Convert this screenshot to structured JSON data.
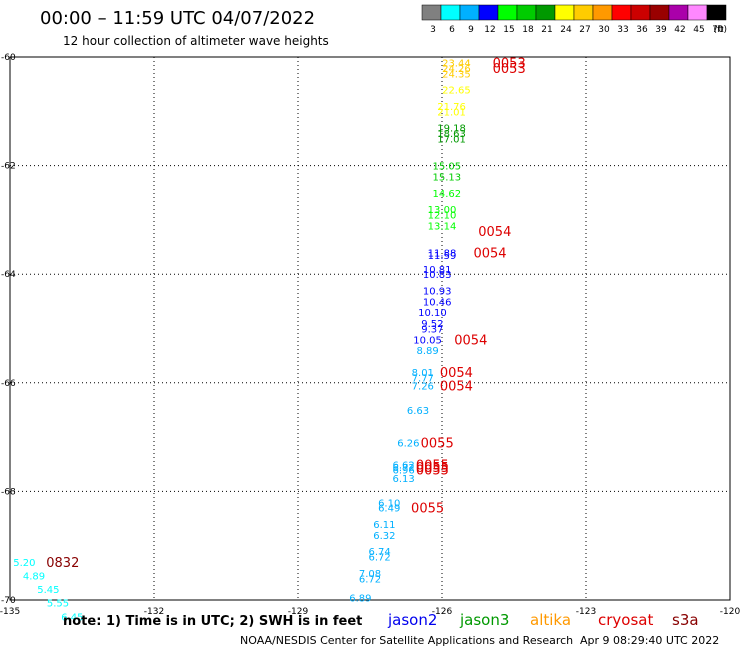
{
  "header": {
    "title": "00:00 – 11:59 UTC 04/07/2022",
    "subtitle": "12 hour collection of altimeter wave heights"
  },
  "colorbar": {
    "labels": [
      "3",
      "6",
      "9",
      "12",
      "15",
      "18",
      "21",
      "24",
      "27",
      "30",
      "33",
      "36",
      "39",
      "42",
      "45",
      "70"
    ],
    "unit": "(ft)",
    "colors": [
      "#808080",
      "#00ffff",
      "#00b0ff",
      "#0000ff",
      "#00ff00",
      "#00cc00",
      "#009900",
      "#ffff00",
      "#ffcc00",
      "#ff9900",
      "#ff0000",
      "#cc0000",
      "#990000",
      "#aa00aa",
      "#ff88ff",
      "#000000"
    ]
  },
  "footer": {
    "note": "note: 1) Time is in UTC; 2) SWH is in feet",
    "credit": "NOAA/NESDIS Center for Satellite Applications and Research",
    "timestamp": "Apr  9 08:29:40 UTC 2022"
  },
  "satellites": [
    {
      "name": "jason2",
      "color": "#0000ee"
    },
    {
      "name": "jason3",
      "color": "#009900"
    },
    {
      "name": "altika",
      "color": "#ff9900"
    },
    {
      "name": "cryosat",
      "color": "#dd0000"
    },
    {
      "name": "s3a",
      "color": "#880000"
    }
  ],
  "chart_data": {
    "type": "scatter",
    "title": "00:00 – 11:59 UTC 04/07/2022",
    "xlim": [
      -135,
      -120
    ],
    "ylim": [
      -70,
      -60
    ],
    "x_ticks": [
      "-135",
      "-132",
      "-129",
      "-126",
      "-123",
      "-120"
    ],
    "y_ticks": [
      "-60",
      "-62",
      "-64",
      "-66",
      "-68",
      "-70"
    ],
    "grid": true,
    "points": [
      {
        "x": -125.7,
        "y": -60.1,
        "label": "23.44",
        "color": "#ffcc00"
      },
      {
        "x": -125.7,
        "y": -60.2,
        "label": "24.26",
        "color": "#ffcc00"
      },
      {
        "x": -125.7,
        "y": -60.3,
        "label": "24.35",
        "color": "#ffcc00"
      },
      {
        "x": -125.7,
        "y": -60.6,
        "label": "22.65",
        "color": "#ffff00"
      },
      {
        "x": -125.8,
        "y": -60.9,
        "label": "21.76",
        "color": "#ffff00"
      },
      {
        "x": -125.8,
        "y": -61.0,
        "label": "21.01",
        "color": "#ffff00"
      },
      {
        "x": -125.8,
        "y": -61.3,
        "label": "19.18",
        "color": "#009900"
      },
      {
        "x": -125.8,
        "y": -61.4,
        "label": "18.63",
        "color": "#009900"
      },
      {
        "x": -125.8,
        "y": -61.5,
        "label": "17.01",
        "color": "#009900"
      },
      {
        "x": -125.9,
        "y": -62.0,
        "label": "15.05",
        "color": "#00cc00"
      },
      {
        "x": -125.9,
        "y": -62.2,
        "label": "15.13",
        "color": "#00cc00"
      },
      {
        "x": -125.9,
        "y": -62.5,
        "label": "14.62",
        "color": "#00ff00"
      },
      {
        "x": -126.0,
        "y": -62.8,
        "label": "13.00",
        "color": "#00ff00"
      },
      {
        "x": -126.0,
        "y": -62.9,
        "label": "12.10",
        "color": "#00ff00"
      },
      {
        "x": -126.0,
        "y": -63.1,
        "label": "13.14",
        "color": "#00ff00"
      },
      {
        "x": -126.0,
        "y": -63.6,
        "label": "11.88",
        "color": "#0000ff"
      },
      {
        "x": -126.0,
        "y": -63.65,
        "label": "11.59",
        "color": "#0000ff"
      },
      {
        "x": -126.1,
        "y": -63.9,
        "label": "10.81",
        "color": "#0000ff"
      },
      {
        "x": -126.1,
        "y": -64.0,
        "label": "10.83",
        "color": "#0000ff"
      },
      {
        "x": -126.1,
        "y": -64.3,
        "label": "10.93",
        "color": "#0000ff"
      },
      {
        "x": -126.1,
        "y": -64.5,
        "label": "10.46",
        "color": "#0000ff"
      },
      {
        "x": -126.2,
        "y": -64.7,
        "label": "10.10",
        "color": "#0000ff"
      },
      {
        "x": -126.2,
        "y": -64.9,
        "label": "9.52",
        "color": "#0000ff"
      },
      {
        "x": -126.2,
        "y": -65.0,
        "label": "9.37",
        "color": "#0000ff"
      },
      {
        "x": -126.3,
        "y": -65.2,
        "label": "10.05",
        "color": "#0000ff"
      },
      {
        "x": -126.3,
        "y": -65.4,
        "label": "8.89",
        "color": "#00b0ff"
      },
      {
        "x": -126.4,
        "y": -65.8,
        "label": "8.01",
        "color": "#00b0ff"
      },
      {
        "x": -126.4,
        "y": -65.9,
        "label": "7.77",
        "color": "#00b0ff"
      },
      {
        "x": -126.4,
        "y": -66.05,
        "label": "7.26",
        "color": "#00b0ff"
      },
      {
        "x": -126.5,
        "y": -66.5,
        "label": "6.63",
        "color": "#00b0ff"
      },
      {
        "x": -126.7,
        "y": -67.1,
        "label": "6.26",
        "color": "#00b0ff"
      },
      {
        "x": -126.8,
        "y": -67.5,
        "label": "6.62",
        "color": "#00b0ff"
      },
      {
        "x": -126.8,
        "y": -67.55,
        "label": "6.72",
        "color": "#00b0ff"
      },
      {
        "x": -126.8,
        "y": -67.6,
        "label": "6.96",
        "color": "#00b0ff"
      },
      {
        "x": -126.8,
        "y": -67.75,
        "label": "6.13",
        "color": "#00b0ff"
      },
      {
        "x": -127.1,
        "y": -68.2,
        "label": "6.10",
        "color": "#00b0ff"
      },
      {
        "x": -127.1,
        "y": -68.3,
        "label": "6.49",
        "color": "#00b0ff"
      },
      {
        "x": -127.2,
        "y": -68.6,
        "label": "6.11",
        "color": "#00b0ff"
      },
      {
        "x": -127.2,
        "y": -68.8,
        "label": "6.32",
        "color": "#00b0ff"
      },
      {
        "x": -127.3,
        "y": -69.1,
        "label": "6.74",
        "color": "#00b0ff"
      },
      {
        "x": -127.3,
        "y": -69.2,
        "label": "6.72",
        "color": "#00b0ff"
      },
      {
        "x": -127.5,
        "y": -69.5,
        "label": "7.08",
        "color": "#00b0ff"
      },
      {
        "x": -127.5,
        "y": -69.6,
        "label": "6.72",
        "color": "#00b0ff"
      },
      {
        "x": -127.7,
        "y": -69.95,
        "label": "6.89",
        "color": "#00b0ff"
      },
      {
        "x": -134.7,
        "y": -69.3,
        "label": "5.20",
        "color": "#00ffff"
      },
      {
        "x": -134.5,
        "y": -69.55,
        "label": "4.89",
        "color": "#00ffff"
      },
      {
        "x": -134.2,
        "y": -69.8,
        "label": "5.45",
        "color": "#00ffff"
      },
      {
        "x": -134.0,
        "y": -70.05,
        "label": "5.55",
        "color": "#00ffff"
      },
      {
        "x": -133.7,
        "y": -70.3,
        "label": "6.45",
        "color": "#00ffff"
      }
    ],
    "time_labels": [
      {
        "x": -124.6,
        "y": -60.1,
        "label": "0053",
        "color": "#dd0000"
      },
      {
        "x": -124.6,
        "y": -60.2,
        "label": "0053",
        "color": "#dd0000"
      },
      {
        "x": -124.9,
        "y": -63.2,
        "label": "0054",
        "color": "#dd0000"
      },
      {
        "x": -125.0,
        "y": -63.6,
        "label": "0054",
        "color": "#dd0000"
      },
      {
        "x": -125.4,
        "y": -65.2,
        "label": "0054",
        "color": "#dd0000"
      },
      {
        "x": -125.7,
        "y": -65.8,
        "label": "0054",
        "color": "#dd0000"
      },
      {
        "x": -125.7,
        "y": -66.05,
        "label": "0054",
        "color": "#dd0000"
      },
      {
        "x": -126.1,
        "y": -67.1,
        "label": "0055",
        "color": "#dd0000"
      },
      {
        "x": -126.2,
        "y": -67.5,
        "label": "0055",
        "color": "#dd0000"
      },
      {
        "x": -126.2,
        "y": -67.55,
        "label": "0055",
        "color": "#dd0000"
      },
      {
        "x": -126.2,
        "y": -67.6,
        "label": "0055",
        "color": "#dd0000"
      },
      {
        "x": -126.3,
        "y": -68.3,
        "label": "0055",
        "color": "#dd0000"
      },
      {
        "x": -133.9,
        "y": -69.3,
        "label": "0832",
        "color": "#880000"
      }
    ]
  }
}
